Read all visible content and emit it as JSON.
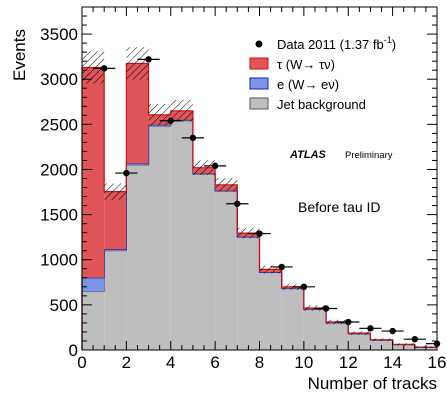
{
  "chart_data": {
    "type": "bar",
    "stacked": true,
    "xlabel": "Number of tracks",
    "ylabel": "Events",
    "xlim": [
      0,
      16
    ],
    "ylim": [
      0,
      3800
    ],
    "x_ticks": [
      "0",
      "2",
      "4",
      "6",
      "8",
      "10",
      "12",
      "14",
      "16"
    ],
    "y_ticks": [
      "0",
      "500",
      "1000",
      "1500",
      "2000",
      "2500",
      "3000",
      "3500"
    ],
    "bin_edges": [
      0,
      1,
      2,
      3,
      4,
      5,
      6,
      7,
      8,
      9,
      10,
      11,
      12,
      13,
      14,
      15,
      16
    ],
    "series": [
      {
        "name": "Jet background",
        "color": "#bebebe",
        "values": [
          650,
          1100,
          2050,
          2480,
          2540,
          1950,
          1760,
          1250,
          860,
          680,
          450,
          300,
          180,
          110,
          60,
          30
        ]
      },
      {
        "name": "e (W→ eν)",
        "color": "#7b96e8",
        "values": [
          150,
          15,
          15,
          15,
          10,
          5,
          5,
          5,
          3,
          2,
          2,
          1,
          1,
          0,
          0,
          0
        ]
      },
      {
        "name": "τ (W→ τν)",
        "color": "#e05557",
        "values": [
          2330,
          640,
          1110,
          110,
          100,
          65,
          65,
          40,
          30,
          18,
          13,
          9,
          6,
          4,
          2,
          1
        ]
      }
    ],
    "uncertainty_band": [
      180,
      90,
      180,
      120,
      120,
      80,
      75,
      60,
      45,
      35,
      30,
      25,
      20,
      15,
      12,
      10
    ],
    "data": {
      "name": "Data 2011 (1.37 fb",
      "lumi_superscript": "-1",
      "name_suffix": ")",
      "x": [
        1,
        2,
        3,
        4,
        5,
        6,
        7,
        8,
        9,
        10,
        11,
        12,
        13,
        14,
        15,
        16
      ],
      "y": [
        3120,
        1960,
        3220,
        2540,
        2350,
        2040,
        1620,
        1290,
        920,
        700,
        460,
        310,
        240,
        210,
        120,
        70
      ],
      "xerr": 0.5
    },
    "legend_position": "top-right",
    "annotations": {
      "experiment": "ATLAS",
      "status": "Preliminary",
      "stage": "Before tau ID"
    }
  }
}
